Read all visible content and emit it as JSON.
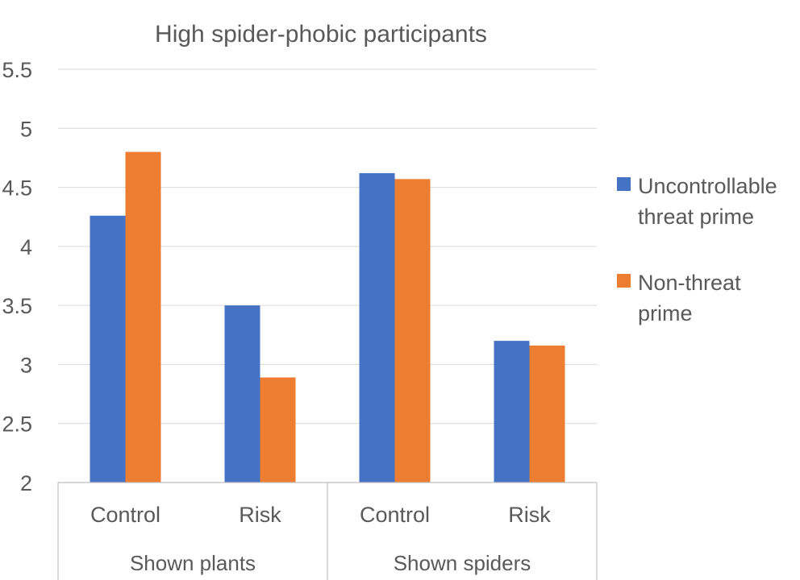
{
  "chart_data": {
    "type": "bar",
    "title": "High spider-phobic participants",
    "groups": [
      {
        "label": "Shown plants",
        "categories": [
          "Control",
          "Risk"
        ]
      },
      {
        "label": "Shown spiders",
        "categories": [
          "Control",
          "Risk"
        ]
      }
    ],
    "categories": [
      "Control",
      "Risk",
      "Control",
      "Risk"
    ],
    "series": [
      {
        "name_lines": [
          "Uncontrollable",
          "threat prime"
        ],
        "color": "#4472C4",
        "values": [
          4.26,
          3.5,
          4.62,
          3.2
        ]
      },
      {
        "name_lines": [
          "Non-threat",
          "prime"
        ],
        "color": "#ED7D31",
        "values": [
          4.8,
          2.89,
          4.57,
          3.16
        ]
      }
    ],
    "ylim": [
      2,
      5.5
    ],
    "yticks": [
      "2",
      "2.5",
      "3",
      "3.5",
      "4",
      "4.5",
      "5",
      "5.5"
    ],
    "grid": true,
    "legend_position": "right"
  }
}
